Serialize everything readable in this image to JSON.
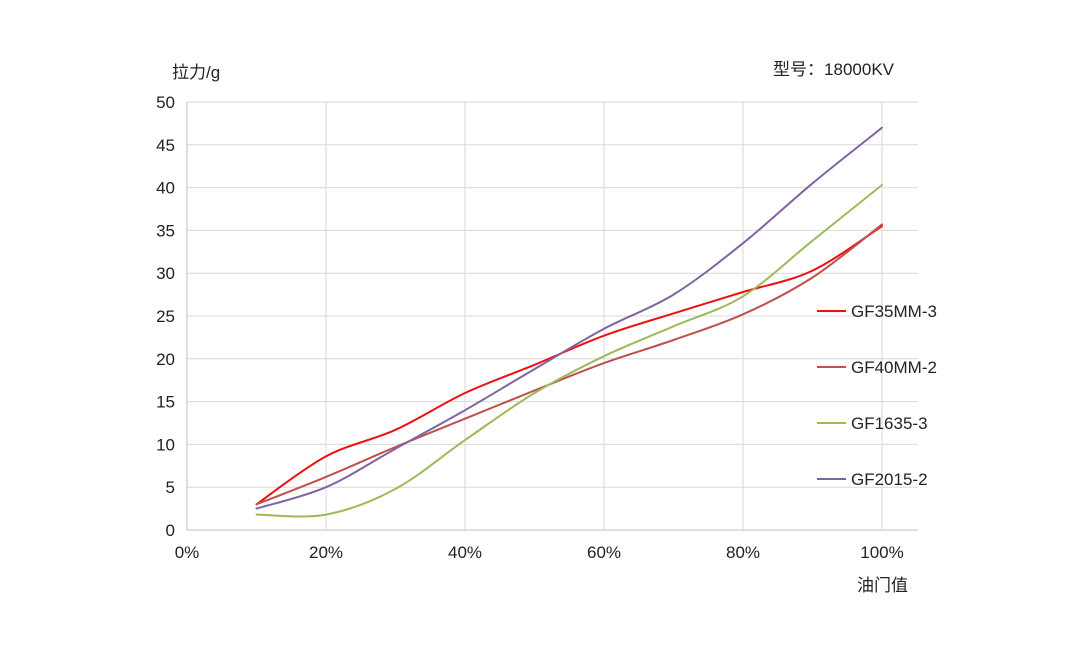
{
  "chart_data": {
    "type": "line",
    "ylabel": "拉力/g",
    "xlabel": "油门值",
    "annotation": "型号：18000KV",
    "x_ticks": [
      "0%",
      "20%",
      "40%",
      "60%",
      "80%",
      "100%"
    ],
    "y_ticks": [
      "0",
      "5",
      "10",
      "15",
      "20",
      "25",
      "30",
      "35",
      "40",
      "45",
      "50"
    ],
    "xlim": [
      0,
      100
    ],
    "ylim": [
      0,
      50
    ],
    "grid": true,
    "legend_position": "right",
    "x": [
      10,
      20,
      30,
      40,
      50,
      60,
      70,
      80,
      90,
      100
    ],
    "series": [
      {
        "name": "GF35MM-3",
        "color": "#ee1111",
        "values": [
          3.0,
          8.6,
          11.7,
          16.0,
          19.3,
          22.7,
          25.3,
          27.8,
          30.3,
          35.5
        ]
      },
      {
        "name": "GF40MM-2",
        "color": "#c0504d",
        "values": [
          3.0,
          6.2,
          9.7,
          13.0,
          16.3,
          19.5,
          22.2,
          25.2,
          29.5,
          35.7
        ]
      },
      {
        "name": "GF1635-3",
        "color": "#9bbb59",
        "values": [
          1.8,
          1.8,
          4.8,
          10.5,
          16.0,
          20.3,
          23.8,
          27.3,
          33.8,
          40.3
        ]
      },
      {
        "name": "GF2015-2",
        "color": "#8064a2",
        "values": [
          2.5,
          5.0,
          9.5,
          14.0,
          18.8,
          23.5,
          27.5,
          33.5,
          40.5,
          47.0
        ]
      }
    ]
  }
}
